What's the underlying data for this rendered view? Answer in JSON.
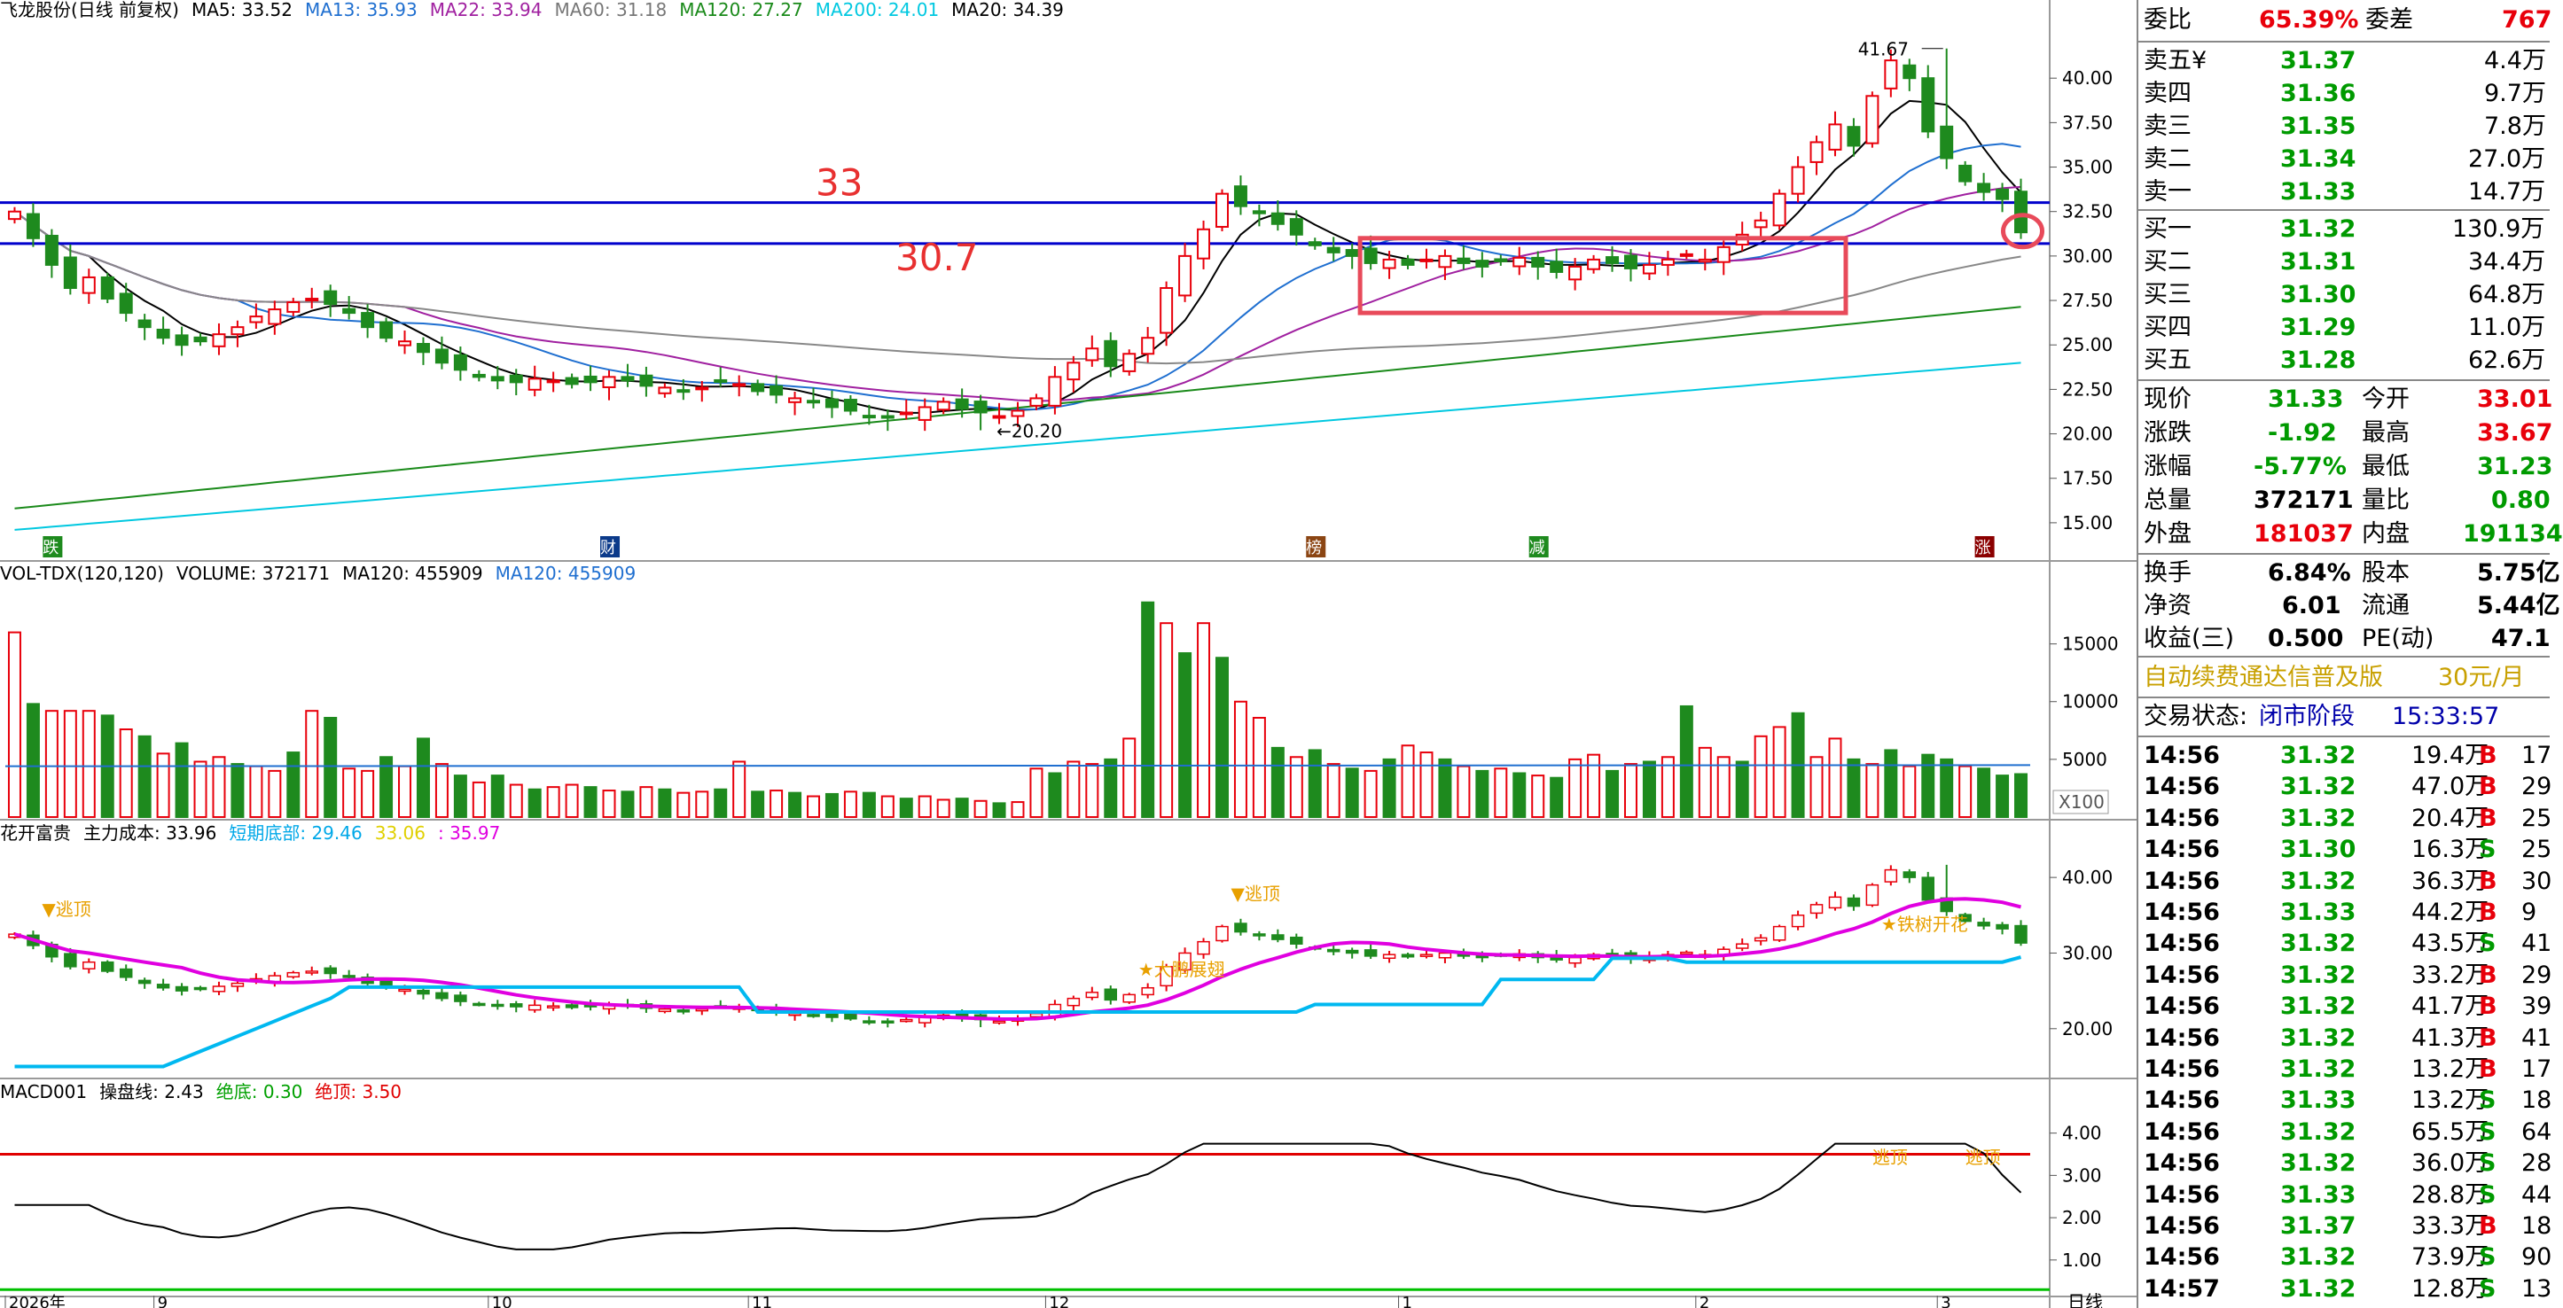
{
  "chart_data": [
    {
      "type": "candlestick",
      "stock_title": "飞龙股份(日线 前复权)",
      "indicators": [
        {
          "label": "MA5: 33.52",
          "color": "#000000"
        },
        {
          "label": "MA13: 35.93",
          "color": "#1f6fd0"
        },
        {
          "label": "MA22: 33.94",
          "color": "#a020a0"
        },
        {
          "label": "MA60: 31.18",
          "color": "#777777"
        },
        {
          "label": "MA120: 27.27",
          "color": "#1a8a1a"
        },
        {
          "label": "MA200: 24.01",
          "color": "#00c8e0"
        },
        {
          "label": "MA20: 34.39",
          "color": "#000000"
        }
      ],
      "ylim": [
        13.5,
        43
      ],
      "y_ticks": [
        "40.00",
        "37.50",
        "35.00",
        "32.50",
        "30.00",
        "27.50",
        "25.00",
        "22.50",
        "20.00",
        "17.50",
        "15.00"
      ],
      "y_tick_values": [
        40,
        37.5,
        35,
        32.5,
        30,
        27.5,
        25,
        22.5,
        20,
        17.5,
        15
      ],
      "hlines": [
        {
          "value": 33,
          "label": "33",
          "color": "#0000cc"
        },
        {
          "value": 30.7,
          "label": "30.7",
          "color": "#0000cc"
        }
      ],
      "annotations": {
        "high": "41.67",
        "low": "20.20"
      },
      "event_markers": [
        "跌",
        "财",
        "榜",
        "减",
        "涨"
      ],
      "closes": [
        32.5,
        31.0,
        29.5,
        28.2,
        28.8,
        27.6,
        26.8,
        26.0,
        25.4,
        25.0,
        25.2,
        25.6,
        26.0,
        26.6,
        27.0,
        27.4,
        27.6,
        27.3,
        26.8,
        26.0,
        25.4,
        25.2,
        24.6,
        24.0,
        23.6,
        23.2,
        23.0,
        22.9,
        23.1,
        23.0,
        22.8,
        22.9,
        23.2,
        23.0,
        22.7,
        22.6,
        22.4,
        22.6,
        23.0,
        22.8,
        22.4,
        22.2,
        22.0,
        21.8,
        21.5,
        21.3,
        21.0,
        20.9,
        21.2,
        21.5,
        21.8,
        21.4,
        21.2,
        21.0,
        21.3,
        22.0,
        23.2,
        24.0,
        24.8,
        23.8,
        24.5,
        25.4,
        28.2,
        30.0,
        31.5,
        33.5,
        32.8,
        32.4,
        31.8,
        31.2,
        30.6,
        30.2,
        30.0,
        29.6,
        29.8,
        29.5,
        29.8,
        30.0,
        29.6,
        29.4,
        29.7,
        29.9,
        29.4,
        29.1,
        29.4,
        29.8,
        29.6,
        29.3,
        29.5,
        29.8,
        30.1,
        29.8,
        30.5,
        31.2,
        32.0,
        33.5,
        35.0,
        36.4,
        37.4,
        36.2,
        39.0,
        41.0,
        40.0,
        37.0,
        35.5,
        34.2,
        33.6,
        33.2,
        31.33
      ],
      "volume": {
        "label": "VOL-TDX(120,120)",
        "volume_text": "VOLUME: 372171",
        "ma120_text": "MA120: 455909",
        "ma120_blue_text": "MA120: 455909",
        "y_ticks": [
          "15000",
          "10000",
          "5000"
        ],
        "y_tick_values": [
          15000,
          10000,
          5000
        ],
        "scale_label": "X100",
        "values": [
          16000,
          9800,
          9200,
          9200,
          9200,
          8800,
          7600,
          7000,
          5500,
          6400,
          4800,
          5200,
          4600,
          4400,
          4000,
          5600,
          9200,
          8600,
          4200,
          4000,
          5200,
          4400,
          6800,
          4600,
          3600,
          3000,
          3600,
          2800,
          2400,
          2600,
          2800,
          2600,
          2300,
          2200,
          2600,
          2400,
          2100,
          2200,
          2400,
          4800,
          2200,
          2300,
          2100,
          1800,
          2000,
          2200,
          2100,
          1800,
          1600,
          1800,
          1500,
          1600,
          1400,
          1200,
          1300,
          4200,
          3800,
          4800,
          4600,
          5000,
          6800,
          18600,
          16800,
          14200,
          16800,
          13800,
          10000,
          8600,
          6000,
          5200,
          5800,
          4600,
          4200,
          4000,
          5000,
          6200,
          5600,
          5000,
          4400,
          4000,
          4200,
          3800,
          3600,
          3400,
          5000,
          5400,
          4000,
          4600,
          4800,
          5200,
          9600,
          6000,
          5200,
          4800,
          7000,
          7800,
          9000,
          5200,
          6800,
          5000,
          4600,
          5800,
          4400,
          5400,
          5000,
          4400,
          4200,
          3600,
          3723
        ],
        "up_flags": [
          1,
          0,
          1,
          1,
          1,
          0,
          1,
          0,
          1,
          0,
          1,
          1,
          0,
          1,
          1,
          0,
          1,
          0,
          1,
          1,
          0,
          1,
          0,
          1,
          0,
          1,
          0,
          1,
          0,
          1,
          1,
          0,
          1,
          0,
          1,
          0,
          1,
          1,
          0,
          1,
          0,
          1,
          0,
          1,
          0,
          1,
          0,
          1,
          0,
          1,
          1,
          0,
          1,
          0,
          1,
          1,
          0,
          1,
          1,
          0,
          1,
          0,
          1,
          0,
          1,
          0,
          1,
          1,
          0,
          1,
          0,
          1,
          0,
          1,
          0,
          1,
          1,
          0,
          1,
          0,
          1,
          0,
          1,
          0,
          1,
          1,
          0,
          1,
          0,
          1,
          0,
          1,
          1,
          0,
          1,
          1,
          0,
          1,
          1,
          0,
          1,
          0,
          1,
          0,
          0,
          1,
          0,
          0,
          0
        ]
      },
      "hkfg": {
        "label": "花开富贵",
        "main_cost": "主力成本: 33.96",
        "short_bottom": "短期底部: 29.46",
        "v2": "33.06",
        "v3": ": 35.97",
        "y_ticks": [
          "40.00",
          "30.00",
          "20.00"
        ],
        "y_tick_values": [
          40,
          30,
          20
        ],
        "tags": [
          "逃顶",
          "逃顶",
          "大鹏展翅",
          "铁树开花"
        ]
      },
      "macd": {
        "label": "MACD001",
        "line_text": "操盘线: 2.43",
        "bottom_text": "绝底: 0.30",
        "top_text": "绝顶: 3.50",
        "y_ticks": [
          "4.00",
          "3.00",
          "2.00",
          "1.00"
        ],
        "y_tick_values": [
          4,
          3,
          2,
          1
        ],
        "top_level": 3.5,
        "bottom_level": 0.3,
        "tags": [
          "逃顶",
          "逃顶"
        ]
      },
      "x_labels": [
        "2026年",
        "9",
        "10",
        "11",
        "12",
        "1",
        "2",
        "3",
        "日线"
      ]
    }
  ],
  "quote": {
    "order_ratio_label": "委比",
    "order_ratio": "65.39%",
    "order_diff_label": "委差",
    "order_diff": "767",
    "asks": [
      {
        "label": "卖五",
        "mark": "¥",
        "price": "31.37",
        "vol": "4.4万"
      },
      {
        "label": "卖四",
        "price": "31.36",
        "vol": "9.7万"
      },
      {
        "label": "卖三",
        "price": "31.35",
        "vol": "7.8万"
      },
      {
        "label": "卖二",
        "price": "31.34",
        "vol": "27.0万"
      },
      {
        "label": "卖一",
        "price": "31.33",
        "vol": "14.7万"
      }
    ],
    "bids": [
      {
        "label": "买一",
        "price": "31.32",
        "vol": "130.9万"
      },
      {
        "label": "买二",
        "price": "31.31",
        "vol": "34.4万"
      },
      {
        "label": "买三",
        "price": "31.30",
        "vol": "64.8万"
      },
      {
        "label": "买四",
        "price": "31.29",
        "vol": "11.0万"
      },
      {
        "label": "买五",
        "price": "31.28",
        "vol": "62.6万"
      }
    ],
    "stats": [
      {
        "l1": "现价",
        "v1": "31.33",
        "l2": "今开",
        "v2": "33.01",
        "c1": "green",
        "c2": "red"
      },
      {
        "l1": "涨跌",
        "v1": "-1.92",
        "l2": "最高",
        "v2": "33.67",
        "c1": "green",
        "c2": "red"
      },
      {
        "l1": "涨幅",
        "v1": "-5.77%",
        "l2": "最低",
        "v2": "31.23",
        "c1": "green",
        "c2": "green"
      },
      {
        "l1": "总量",
        "v1": "372171",
        "l2": "量比",
        "v2": "0.80",
        "c1": "black",
        "c2": "green"
      },
      {
        "l1": "外盘",
        "v1": "181037",
        "l2": "内盘",
        "v2": "191134",
        "c1": "red",
        "c2": "green"
      }
    ],
    "stats2": [
      {
        "l1": "换手",
        "v1": "6.84%",
        "l2": "股本",
        "v2": "5.75亿"
      },
      {
        "l1": "净资",
        "v1": "6.01",
        "l2": "流通",
        "v2": "5.44亿"
      },
      {
        "l1": "收益(三)",
        "v1": "0.500",
        "l2": "PE(动)",
        "v2": "47.1"
      }
    ],
    "ad_text": "自动续费通达信普及版",
    "ad_price": "30元/月",
    "trade_status_label": "交易状态:",
    "trade_status": "闭市阶段",
    "trade_time": "15:33:57",
    "ticks": [
      {
        "t": "14:56",
        "p": "31.32",
        "v": "19.4万",
        "s": "B",
        "n": "17"
      },
      {
        "t": "14:56",
        "p": "31.32",
        "v": "47.0万",
        "s": "B",
        "n": "29"
      },
      {
        "t": "14:56",
        "p": "31.32",
        "v": "20.4万",
        "s": "B",
        "n": "25"
      },
      {
        "t": "14:56",
        "p": "31.30",
        "v": "16.3万",
        "s": "S",
        "n": "25"
      },
      {
        "t": "14:56",
        "p": "31.32",
        "v": "36.3万",
        "s": "B",
        "n": "30"
      },
      {
        "t": "14:56",
        "p": "31.33",
        "v": "44.2万",
        "s": "B",
        "n": "9"
      },
      {
        "t": "14:56",
        "p": "31.32",
        "v": "43.5万",
        "s": "S",
        "n": "41"
      },
      {
        "t": "14:56",
        "p": "31.32",
        "v": "33.2万",
        "s": "B",
        "n": "29"
      },
      {
        "t": "14:56",
        "p": "31.32",
        "v": "41.7万",
        "s": "B",
        "n": "39"
      },
      {
        "t": "14:56",
        "p": "31.32",
        "v": "41.3万",
        "s": "B",
        "n": "41"
      },
      {
        "t": "14:56",
        "p": "31.32",
        "v": "13.2万",
        "s": "B",
        "n": "17"
      },
      {
        "t": "14:56",
        "p": "31.33",
        "v": "13.2万",
        "s": "S",
        "n": "18"
      },
      {
        "t": "14:56",
        "p": "31.32",
        "v": "65.5万",
        "s": "S",
        "n": "64"
      },
      {
        "t": "14:56",
        "p": "31.32",
        "v": "36.0万",
        "s": "S",
        "n": "28"
      },
      {
        "t": "14:56",
        "p": "31.33",
        "v": "28.8万",
        "s": "S",
        "n": "44"
      },
      {
        "t": "14:56",
        "p": "31.37",
        "v": "33.3万",
        "s": "B",
        "n": "18"
      },
      {
        "t": "14:56",
        "p": "31.32",
        "v": "73.9万",
        "s": "S",
        "n": "90"
      },
      {
        "t": "14:57",
        "p": "31.32",
        "v": "12.8万",
        "s": "S",
        "n": "13"
      }
    ]
  }
}
